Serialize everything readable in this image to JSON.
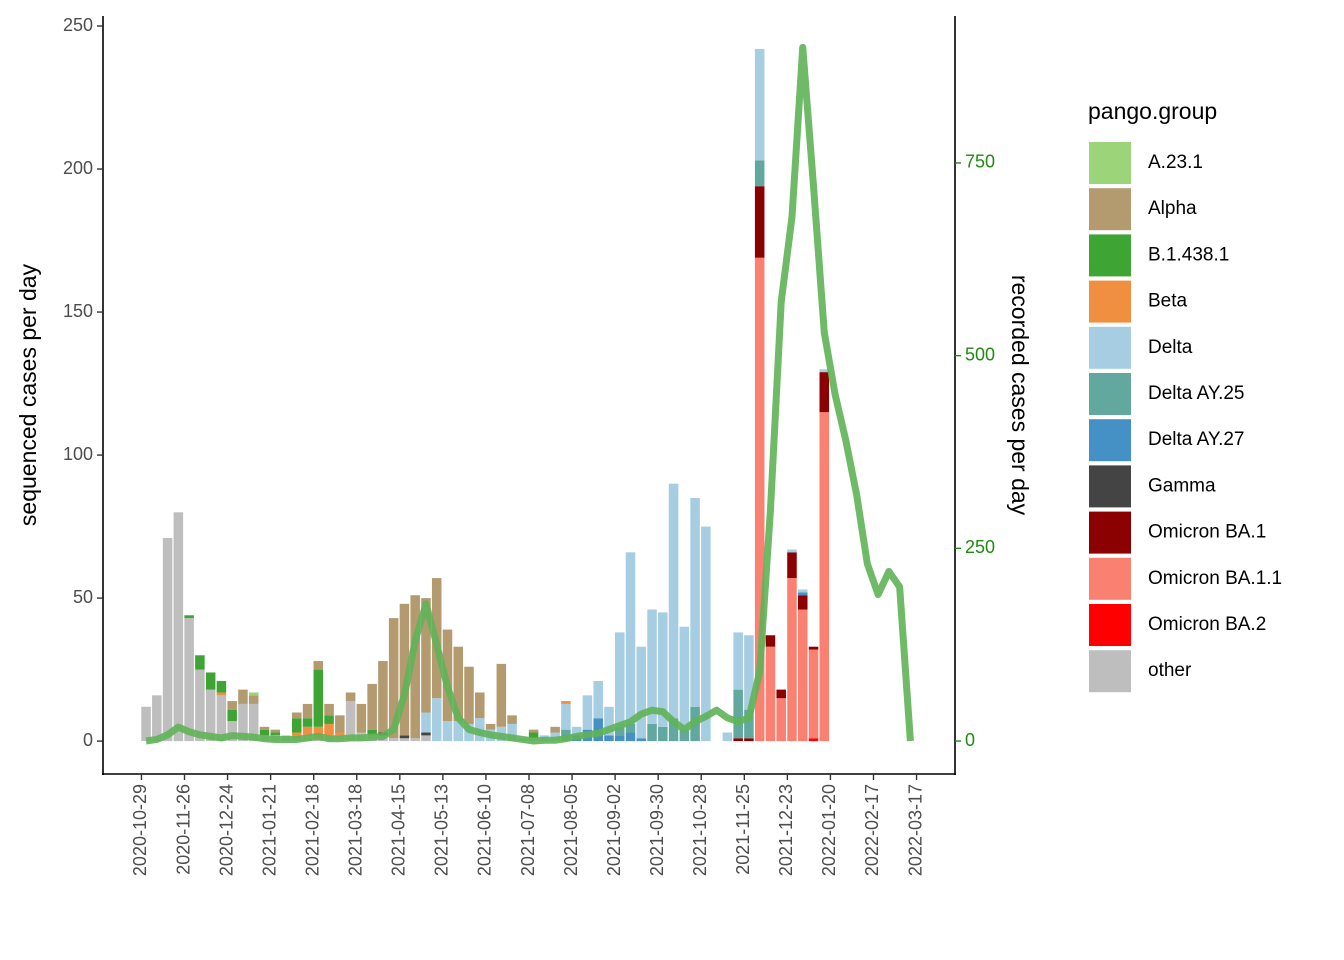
{
  "chart_data": {
    "type": "bar",
    "stacked": true,
    "ylabel": "sequenced cases per day",
    "y2label": "recorded cases per day",
    "legend_title": "pango.group",
    "x": [
      "2020-11-01",
      "2020-11-08",
      "2020-11-15",
      "2020-11-22",
      "2020-11-29",
      "2020-12-06",
      "2020-12-13",
      "2020-12-20",
      "2020-12-27",
      "2021-01-03",
      "2021-01-10",
      "2021-01-17",
      "2021-01-24",
      "2021-01-31",
      "2021-02-07",
      "2021-02-14",
      "2021-02-21",
      "2021-02-28",
      "2021-03-07",
      "2021-03-14",
      "2021-03-21",
      "2021-03-28",
      "2021-04-04",
      "2021-04-11",
      "2021-04-18",
      "2021-04-25",
      "2021-05-02",
      "2021-05-09",
      "2021-05-16",
      "2021-05-23",
      "2021-05-30",
      "2021-06-06",
      "2021-06-13",
      "2021-06-20",
      "2021-06-27",
      "2021-07-04",
      "2021-07-11",
      "2021-07-18",
      "2021-07-25",
      "2021-08-01",
      "2021-08-08",
      "2021-08-15",
      "2021-08-22",
      "2021-08-29",
      "2021-09-05",
      "2021-09-12",
      "2021-09-19",
      "2021-09-26",
      "2021-10-03",
      "2021-10-10",
      "2021-10-17",
      "2021-10-24",
      "2021-10-31",
      "2021-11-07",
      "2021-11-14",
      "2021-11-21",
      "2021-11-28",
      "2021-12-05",
      "2021-12-12",
      "2021-12-19",
      "2021-12-26",
      "2022-01-02",
      "2022-01-09",
      "2022-01-16",
      "2022-01-23",
      "2022-01-30",
      "2022-02-06",
      "2022-02-13",
      "2022-02-20",
      "2022-02-27",
      "2022-03-06",
      "2022-03-13"
    ],
    "xlim": [
      "2020-10-04",
      "2022-04-11"
    ],
    "xticks": [
      "2020-10-29",
      "2020-11-26",
      "2020-12-24",
      "2021-01-21",
      "2021-02-18",
      "2021-03-18",
      "2021-04-15",
      "2021-05-13",
      "2021-06-10",
      "2021-07-08",
      "2021-08-05",
      "2021-09-02",
      "2021-09-30",
      "2021-10-28",
      "2021-11-25",
      "2021-12-23",
      "2022-01-20",
      "2022-02-17",
      "2022-03-17"
    ],
    "ylim": [
      -11.5,
      253.5
    ],
    "yticks": [
      0,
      50,
      100,
      150,
      200,
      250
    ],
    "y2lim": [
      -42.8,
      940.7
    ],
    "y2ticks": [
      0,
      250,
      500,
      750
    ],
    "series": [
      {
        "name": "A.23.1",
        "color": "#9cd47a",
        "values": [
          0,
          0,
          0,
          0,
          0,
          0,
          0,
          0,
          0,
          0,
          1,
          0,
          0,
          0,
          0,
          0,
          0,
          0,
          0,
          0,
          0,
          0,
          0,
          0,
          0,
          0,
          0,
          0,
          0,
          0,
          0,
          0,
          0,
          0,
          0,
          0,
          0,
          0,
          0,
          0,
          0,
          0,
          0,
          0,
          0,
          0,
          0,
          0,
          0,
          0,
          0,
          0,
          0,
          0,
          0,
          0,
          0,
          0,
          0,
          0,
          0,
          0,
          0,
          0,
          null,
          null,
          null,
          null,
          null,
          null,
          null,
          null
        ]
      },
      {
        "name": "Alpha",
        "color": "#b39b6f",
        "values": [
          0,
          0,
          0,
          0,
          0,
          0,
          0,
          0,
          3,
          5,
          3,
          1,
          1,
          0,
          2,
          5,
          3,
          4,
          6,
          3,
          10,
          16,
          25,
          42,
          46,
          50,
          40,
          42,
          32,
          26,
          20,
          9,
          2,
          22,
          3,
          0,
          1,
          0,
          2,
          0,
          0,
          0,
          0,
          0,
          0,
          0,
          0,
          0,
          0,
          0,
          0,
          0,
          0,
          0,
          0,
          0,
          0,
          0,
          0,
          0,
          0,
          0,
          0,
          0,
          null,
          null,
          null,
          null,
          null,
          null,
          null,
          null
        ]
      },
      {
        "name": "B.1.438.1",
        "color": "#3ea535",
        "values": [
          0,
          0,
          0,
          0,
          1,
          5,
          6,
          4,
          4,
          0,
          0,
          2,
          1,
          0,
          5,
          3,
          20,
          3,
          0,
          0,
          0,
          2,
          0,
          0,
          0,
          0,
          0,
          0,
          0,
          0,
          0,
          0,
          0,
          0,
          0,
          0,
          2,
          0,
          0,
          0,
          0,
          0,
          0,
          0,
          0,
          0,
          0,
          0,
          0,
          0,
          0,
          0,
          0,
          0,
          0,
          0,
          0,
          0,
          0,
          0,
          0,
          0,
          0,
          0,
          null,
          null,
          null,
          null,
          null,
          null,
          null,
          null
        ]
      },
      {
        "name": "Beta",
        "color": "#f08f3f",
        "values": [
          0,
          0,
          0,
          0,
          0,
          0,
          0,
          1,
          0,
          0,
          0,
          0,
          0,
          0,
          2,
          3,
          4,
          4,
          1,
          0,
          0,
          0,
          0,
          0,
          0,
          0,
          0,
          0,
          0,
          0,
          0,
          0,
          0,
          0,
          0,
          0,
          0,
          0,
          0,
          1,
          0,
          0,
          0,
          0,
          0,
          0,
          0,
          0,
          0,
          0,
          0,
          0,
          0,
          0,
          0,
          0,
          0,
          0,
          0,
          0,
          0,
          0,
          0,
          0,
          null,
          null,
          null,
          null,
          null,
          null,
          null,
          null
        ]
      },
      {
        "name": "Delta",
        "color": "#a6cde2",
        "values": [
          0,
          0,
          0,
          0,
          0,
          0,
          0,
          0,
          0,
          0,
          0,
          0,
          0,
          0,
          0,
          0,
          0,
          0,
          0,
          0,
          0,
          0,
          0,
          0,
          0,
          0,
          7,
          15,
          7,
          7,
          6,
          8,
          4,
          5,
          6,
          1,
          0,
          2,
          3,
          9,
          3,
          12,
          13,
          10,
          33,
          60,
          32,
          40,
          40,
          82,
          36,
          73,
          75,
          0,
          3,
          20,
          26,
          39,
          0,
          0,
          1,
          1,
          0,
          1,
          null,
          null,
          null,
          null,
          null,
          null,
          null,
          null
        ]
      },
      {
        "name": "Delta AY.25",
        "color": "#62a89f",
        "values": [
          0,
          0,
          0,
          0,
          0,
          0,
          0,
          0,
          0,
          0,
          0,
          0,
          0,
          0,
          0,
          0,
          0,
          0,
          0,
          0,
          0,
          0,
          0,
          0,
          0,
          0,
          0,
          0,
          0,
          0,
          0,
          0,
          0,
          0,
          0,
          0,
          0,
          0,
          0,
          4,
          0,
          0,
          0,
          0,
          3,
          3,
          0,
          6,
          5,
          8,
          4,
          12,
          0,
          0,
          0,
          17,
          10,
          9,
          0,
          0,
          0,
          0,
          0,
          0,
          null,
          null,
          null,
          null,
          null,
          null,
          null,
          null
        ]
      },
      {
        "name": "Delta AY.27",
        "color": "#4590c4",
        "values": [
          0,
          0,
          0,
          0,
          0,
          0,
          0,
          0,
          0,
          0,
          0,
          0,
          0,
          0,
          0,
          0,
          0,
          0,
          0,
          0,
          0,
          0,
          0,
          0,
          0,
          0,
          0,
          0,
          0,
          0,
          0,
          0,
          0,
          0,
          0,
          0,
          0,
          0,
          0,
          0,
          2,
          4,
          8,
          2,
          2,
          3,
          1,
          0,
          0,
          0,
          0,
          0,
          0,
          0,
          0,
          0,
          0,
          0,
          0,
          0,
          0,
          1,
          0,
          0,
          null,
          null,
          null,
          null,
          null,
          null,
          null,
          null
        ]
      },
      {
        "name": "Gamma",
        "color": "#444444",
        "values": [
          0,
          0,
          0,
          0,
          0,
          0,
          0,
          0,
          0,
          0,
          0,
          0,
          0,
          0,
          0,
          0,
          0,
          0,
          0,
          0,
          0,
          0,
          1,
          0,
          1,
          0,
          1,
          0,
          0,
          0,
          0,
          0,
          0,
          0,
          0,
          0,
          0,
          0,
          0,
          0,
          0,
          0,
          0,
          0,
          0,
          0,
          0,
          0,
          0,
          0,
          0,
          0,
          0,
          0,
          0,
          0,
          0,
          0,
          0,
          0,
          0,
          0,
          0,
          0,
          null,
          null,
          null,
          null,
          null,
          null,
          null,
          null
        ]
      },
      {
        "name": "Omicron BA.1",
        "color": "#8b0000",
        "values": [
          0,
          0,
          0,
          0,
          0,
          0,
          0,
          0,
          0,
          0,
          0,
          0,
          0,
          0,
          0,
          0,
          0,
          0,
          0,
          0,
          0,
          0,
          0,
          0,
          0,
          0,
          0,
          0,
          0,
          0,
          0,
          0,
          0,
          0,
          0,
          0,
          0,
          0,
          0,
          0,
          0,
          0,
          0,
          0,
          0,
          0,
          0,
          0,
          0,
          0,
          0,
          0,
          0,
          0,
          0,
          1,
          1,
          25,
          4,
          3,
          9,
          5,
          1,
          14,
          null,
          null,
          null,
          null,
          null,
          null,
          null,
          null
        ]
      },
      {
        "name": "Omicron BA.1.1",
        "color": "#fa8072",
        "values": [
          0,
          0,
          0,
          0,
          0,
          0,
          0,
          0,
          0,
          0,
          0,
          0,
          0,
          0,
          0,
          0,
          0,
          0,
          0,
          0,
          0,
          0,
          0,
          0,
          0,
          0,
          0,
          0,
          0,
          0,
          0,
          0,
          0,
          0,
          0,
          0,
          0,
          0,
          0,
          0,
          0,
          0,
          0,
          0,
          0,
          0,
          0,
          0,
          0,
          0,
          0,
          0,
          0,
          0,
          0,
          0,
          0,
          169,
          33,
          15,
          57,
          46,
          31,
          115,
          null,
          null,
          null,
          null,
          null,
          null,
          null,
          null
        ]
      },
      {
        "name": "Omicron BA.2",
        "color": "#ff0000",
        "values": [
          0,
          0,
          0,
          0,
          0,
          0,
          0,
          0,
          0,
          0,
          0,
          0,
          0,
          0,
          0,
          0,
          0,
          0,
          0,
          0,
          0,
          0,
          0,
          0,
          0,
          0,
          0,
          0,
          0,
          0,
          0,
          0,
          0,
          0,
          0,
          0,
          0,
          0,
          0,
          0,
          0,
          0,
          0,
          0,
          0,
          0,
          0,
          0,
          0,
          0,
          0,
          0,
          0,
          0,
          0,
          0,
          0,
          0,
          0,
          0,
          0,
          0,
          1,
          0,
          null,
          null,
          null,
          null,
          null,
          null,
          null,
          null
        ]
      },
      {
        "name": "other",
        "color": "#bebebe",
        "values": [
          12,
          16,
          71,
          80,
          43,
          25,
          18,
          16,
          7,
          13,
          13,
          2,
          2,
          2,
          1,
          2,
          1,
          2,
          2,
          14,
          3,
          2,
          2,
          1,
          1,
          1,
          2,
          0,
          0,
          0,
          0,
          0,
          0,
          0,
          0,
          0,
          1,
          0,
          0,
          0,
          0,
          0,
          0,
          0,
          0,
          0,
          0,
          0,
          0,
          0,
          0,
          0,
          0,
          0,
          0,
          0,
          0,
          0,
          0,
          0,
          0,
          0,
          0,
          0,
          null,
          null,
          null,
          null,
          null,
          null,
          null,
          null
        ]
      }
    ],
    "line": {
      "type": "line",
      "axis": "y2",
      "color": "#5fb257",
      "values": [
        0,
        2,
        8,
        18,
        12,
        8,
        6,
        4,
        7,
        6,
        5,
        3,
        2,
        2,
        2,
        4,
        6,
        3,
        3,
        4,
        4,
        5,
        6,
        15,
        60,
        130,
        178,
        125,
        70,
        30,
        15,
        11,
        8,
        6,
        4,
        2,
        0,
        1,
        1,
        3,
        6,
        8,
        10,
        15,
        20,
        25,
        35,
        40,
        38,
        25,
        15,
        25,
        32,
        40,
        30,
        25,
        30,
        90,
        300,
        570,
        680,
        900,
        720,
        530,
        450,
        390,
        320,
        230,
        190,
        220,
        200,
        0
      ]
    }
  }
}
